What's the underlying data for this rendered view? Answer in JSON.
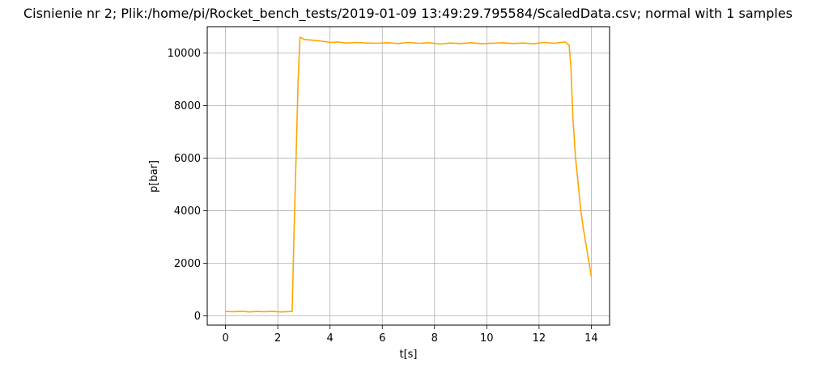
{
  "chart_data": {
    "type": "line",
    "title": "Cisnienie nr 2; Plik:/home/pi/Rocket_bench_tests/2019-01-09 13:49:29.795584/ScaledData.csv; normal with 1 samples",
    "xlabel": "t[s]",
    "ylabel": "p[bar]",
    "xlim": [
      -0.7,
      14.7
    ],
    "ylim": [
      -350,
      11000
    ],
    "grid": true,
    "legend": "none",
    "x_ticks": [
      0,
      2,
      4,
      6,
      8,
      10,
      12,
      14
    ],
    "x_tick_labels": [
      "0",
      "2",
      "4",
      "6",
      "8",
      "10",
      "12",
      "14"
    ],
    "y_ticks": [
      0,
      2000,
      4000,
      6000,
      8000,
      10000
    ],
    "y_tick_labels": [
      "0",
      "2000",
      "4000",
      "6000",
      "8000",
      "10000"
    ],
    "series": [
      {
        "color": "#ffa500",
        "x": [
          0.0,
          0.3,
          0.6,
          0.9,
          1.2,
          1.5,
          1.8,
          2.1,
          2.4,
          2.55,
          2.62,
          2.7,
          2.78,
          2.85,
          3.0,
          3.2,
          3.5,
          3.8,
          4.0,
          4.3,
          4.6,
          5.0,
          5.4,
          5.8,
          6.2,
          6.6,
          7.0,
          7.4,
          7.8,
          8.2,
          8.6,
          9.0,
          9.4,
          9.8,
          10.2,
          10.6,
          11.0,
          11.4,
          11.8,
          12.2,
          12.6,
          13.0,
          13.15,
          13.22,
          13.3,
          13.4,
          13.5,
          13.6,
          13.7,
          13.8,
          13.9,
          14.0
        ],
        "y": [
          170,
          160,
          180,
          150,
          170,
          160,
          175,
          150,
          165,
          170,
          3000,
          6000,
          9000,
          10600,
          10520,
          10500,
          10470,
          10430,
          10400,
          10420,
          10380,
          10400,
          10380,
          10370,
          10390,
          10360,
          10400,
          10370,
          10390,
          10340,
          10380,
          10360,
          10390,
          10350,
          10370,
          10390,
          10360,
          10380,
          10350,
          10400,
          10370,
          10420,
          10300,
          9500,
          7500,
          6000,
          5000,
          4000,
          3300,
          2700,
          2100,
          1500
        ]
      }
    ]
  }
}
